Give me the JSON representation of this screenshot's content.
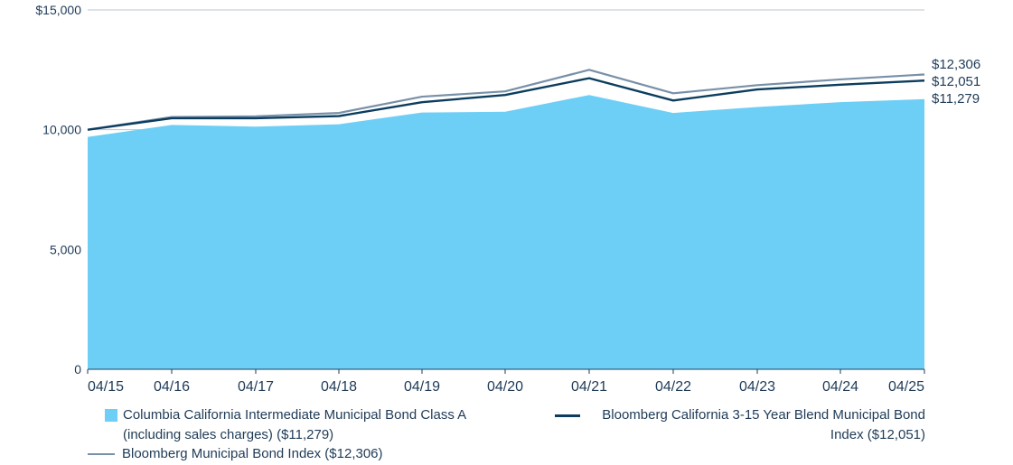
{
  "chart_data": {
    "type": "area",
    "categories": [
      "04/15",
      "04/16",
      "04/17",
      "04/18",
      "04/19",
      "04/20",
      "04/21",
      "04/22",
      "04/23",
      "04/24",
      "04/25"
    ],
    "ylim": [
      0,
      15000
    ],
    "yticks": [
      0,
      5000,
      10000,
      15000
    ],
    "ytick_labels": [
      "0",
      "5,000",
      "10,000",
      "$15,000"
    ],
    "grid": true,
    "legend_position": "bottom",
    "series": [
      {
        "name": "Columbia California Intermediate Municipal Bond Class A (including sales charges) ($11,279)",
        "kind": "area",
        "color": "#6dcff6",
        "end_label": "$11,279",
        "values": [
          9700,
          10200,
          10130,
          10230,
          10720,
          10750,
          11450,
          10700,
          10950,
          11150,
          11279
        ]
      },
      {
        "name": "Bloomberg California 3-15 Year Blend Municipal Bond Index ($12,051)",
        "kind": "line",
        "color": "#0b3d5e",
        "end_label": "$12,051",
        "values": [
          10000,
          10480,
          10480,
          10570,
          11150,
          11450,
          12150,
          11220,
          11680,
          11880,
          12051
        ]
      },
      {
        "name": "Bloomberg Municipal Bond Index ($12,306)",
        "kind": "line",
        "color": "#7890a8",
        "end_label": "$12,306",
        "values": [
          10000,
          10530,
          10560,
          10700,
          11380,
          11600,
          12500,
          11520,
          11860,
          12100,
          12306
        ]
      }
    ]
  },
  "legend": {
    "item1": {
      "line1": "Columbia California Intermediate Municipal Bond Class A",
      "line2": "(including sales charges) ($11,279)"
    },
    "item2": {
      "line1": "Bloomberg California 3-15 Year Blend Municipal Bond",
      "line2": "Index ($12,051)"
    },
    "item3": {
      "line1": "Bloomberg Municipal Bond Index ($12,306)"
    }
  }
}
